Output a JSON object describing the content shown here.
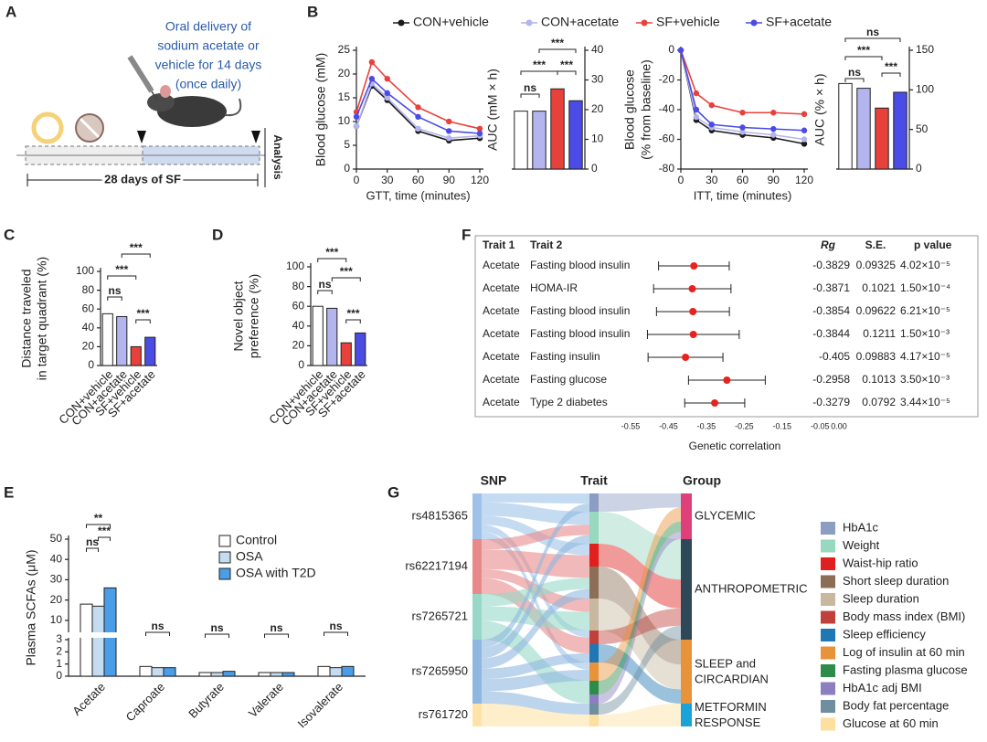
{
  "panel_labels": [
    "A",
    "B",
    "C",
    "D",
    "E",
    "F",
    "G"
  ],
  "panel_a": {
    "delivery_lines": [
      "Oral delivery of",
      "sodium acetate or",
      "vehicle for 14 days",
      "(once daily)"
    ],
    "timeline": "28 days of SF",
    "endpoint": "Analysis"
  },
  "chart_data": [
    {
      "type": "line",
      "ylabel": [
        "Blood glucose (mM)"
      ],
      "xlabel": "GTT, time (minutes)",
      "x": [
        0,
        15,
        30,
        60,
        90,
        120
      ],
      "xlim": [
        0,
        120
      ],
      "xticks": [
        0,
        30,
        60,
        90,
        120
      ],
      "ylim": [
        0,
        25
      ],
      "yticks": [
        0,
        5,
        10,
        15,
        20,
        25
      ],
      "series": [
        {
          "name": "CON+vehicle",
          "color": "#1a1a1a",
          "values": [
            9,
            17.5,
            14.5,
            8,
            6,
            6.5
          ]
        },
        {
          "name": "CON+acetate",
          "color": "#b4b4ee",
          "values": [
            9,
            18,
            15,
            8.5,
            6.5,
            7
          ]
        },
        {
          "name": "SF+vehicle",
          "color": "#e8413c",
          "values": [
            12,
            22.5,
            19,
            13,
            10,
            8.5
          ]
        },
        {
          "name": "SF+acetate",
          "color": "#4b4be6",
          "values": [
            11,
            19,
            16,
            11,
            8,
            7.5
          ]
        }
      ]
    },
    {
      "type": "bar",
      "ylabel": [
        "AUC (mM × h)"
      ],
      "values": [
        19.5,
        19.5,
        27,
        23
      ],
      "colors": [
        "#ffffff",
        "#b4b4ee",
        "#e8413c",
        "#4b4be6"
      ],
      "ylim": [
        0,
        40
      ],
      "yticks": [
        0,
        10,
        20,
        30,
        40
      ],
      "significance": [
        "ns",
        "***",
        "***",
        "***"
      ]
    },
    {
      "type": "line",
      "ylabel": [
        "Blood glucose",
        "(% from baseline)"
      ],
      "xlabel": "ITT, time (minutes)",
      "x": [
        0,
        15,
        30,
        60,
        90,
        120
      ],
      "xlim": [
        0,
        120
      ],
      "xticks": [
        0,
        30,
        60,
        90,
        120
      ],
      "ylim": [
        -80,
        0
      ],
      "yticks": [
        -80,
        -60,
        -40,
        -20,
        0
      ],
      "series": [
        {
          "color": "#1a1a1a",
          "values": [
            0,
            -47,
            -54,
            -57,
            -59,
            -63
          ]
        },
        {
          "color": "#b4b4ee",
          "values": [
            0,
            -45,
            -52,
            -55,
            -57,
            -60
          ]
        },
        {
          "color": "#e8413c",
          "values": [
            0,
            -29,
            -37,
            -42,
            -42,
            -43
          ]
        },
        {
          "color": "#4b4be6",
          "values": [
            0,
            -40,
            -50,
            -52,
            -53,
            -54
          ]
        }
      ]
    },
    {
      "type": "bar",
      "ylabel": [
        "AUC (% × h)"
      ],
      "values": [
        108,
        102,
        77,
        97
      ],
      "colors": [
        "#ffffff",
        "#b4b4ee",
        "#e8413c",
        "#4b4be6"
      ],
      "ylim": [
        0,
        150
      ],
      "yticks": [
        0,
        50,
        100,
        150
      ],
      "significance": [
        "ns",
        "***",
        "***",
        "ns"
      ]
    },
    {
      "type": "bar",
      "ylabel": [
        "Distance traveled",
        "in target quadrant (%)"
      ],
      "categories": [
        "CON+vehicle",
        "CON+acetate",
        "SF+vehicle",
        "SF+acetate"
      ],
      "values": [
        55,
        52,
        20,
        30
      ],
      "colors": [
        "#ffffff",
        "#b4b4ee",
        "#e8413c",
        "#4b4be6"
      ],
      "ylim": [
        0,
        100
      ],
      "yticks": [
        0,
        20,
        40,
        60,
        80,
        100
      ],
      "significance": [
        "ns",
        "***",
        "***",
        "***"
      ]
    },
    {
      "type": "bar",
      "ylabel": [
        "Novel object",
        "preference (%)"
      ],
      "categories": [
        "CON+vehicle",
        "CON+acetate",
        "SF+vehicle",
        "SF+acetate"
      ],
      "values": [
        60,
        58,
        23,
        33
      ],
      "colors": [
        "#ffffff",
        "#b4b4ee",
        "#e8413c",
        "#4b4be6"
      ],
      "ylim": [
        0,
        100
      ],
      "yticks": [
        0,
        20,
        40,
        60,
        80,
        100
      ],
      "significance": [
        "***",
        "ns",
        "***",
        "***"
      ]
    },
    {
      "type": "grouped_bar",
      "ylabel": [
        "Plasma SCFAs (μM)"
      ],
      "categories": [
        "Acetate",
        "Caproate",
        "Butyrate",
        "Valerate",
        "Isovalerate"
      ],
      "series": [
        {
          "name": "Control",
          "color": "#ffffff",
          "values": [
            18,
            0.8,
            0.3,
            0.3,
            0.8
          ]
        },
        {
          "name": "OSA",
          "color": "#c5dcf0",
          "values": [
            17,
            0.7,
            0.3,
            0.3,
            0.7
          ]
        },
        {
          "name": "OSA with T2D",
          "color": "#4a9ee8",
          "values": [
            26,
            0.7,
            0.4,
            0.3,
            0.8
          ]
        }
      ],
      "ylim": [
        0,
        50
      ],
      "axis_break": [
        3,
        5
      ],
      "yticks": [
        0,
        1,
        2,
        3,
        10,
        20,
        30,
        40,
        50
      ],
      "significance": [
        "**",
        "ns",
        "***",
        "ns",
        "ns",
        "ns",
        "ns"
      ]
    },
    {
      "type": "forest",
      "columns": [
        "Trait 1",
        "Trait 2",
        "Rg",
        "S.E.",
        "p value"
      ],
      "xlabel": "Genetic correlation",
      "xlim": [
        -0.55,
        0
      ],
      "xticks": [
        -0.55,
        -0.45,
        -0.35,
        -0.25,
        -0.15,
        -0.05,
        {
          "value": 0,
          "label": "0.00"
        }
      ],
      "color": "#e8231e",
      "rows": [
        {
          "trait1": "Acetate",
          "trait2": "Fasting blood insulin",
          "rg": -0.3829,
          "se": 0.09325,
          "p": "4.02×10⁻⁵"
        },
        {
          "trait1": "Acetate",
          "trait2": "HOMA-IR",
          "rg": -0.3871,
          "se": 0.1021,
          "p": "1.50×10⁻⁴"
        },
        {
          "trait1": "Acetate",
          "trait2": "Fasting blood insulin",
          "rg": -0.3854,
          "se": 0.09622,
          "p": "6.21×10⁻⁵"
        },
        {
          "trait1": "Acetate",
          "trait2": "Fasting blood insulin",
          "rg": -0.3844,
          "se": 0.1211,
          "p": "1.50×10⁻³"
        },
        {
          "trait1": "Acetate",
          "trait2": "Fasting insulin",
          "rg": -0.405,
          "se": 0.09883,
          "p": "4.17×10⁻⁵"
        },
        {
          "trait1": "Acetate",
          "trait2": "Fasting glucose",
          "rg": -0.2958,
          "se": 0.1013,
          "p": "3.50×10⁻³"
        },
        {
          "trait1": "Acetate",
          "trait2": "Type 2 diabetes",
          "rg": -0.3279,
          "se": 0.0792,
          "p": "3.44×10⁻⁵"
        }
      ]
    }
  ],
  "panel_g": {
    "headers": [
      "SNP",
      "Trait",
      "Group"
    ],
    "snps": [
      {
        "name": "rs4815365",
        "color": "#9fc3e8"
      },
      {
        "name": "rs62217194",
        "color": "#e88a8a"
      },
      {
        "name": "rs7265721",
        "color": "#98d8c8"
      },
      {
        "name": "rs7265950",
        "color": "#8fb7e0"
      },
      {
        "name": "rs761720",
        "color": "#fde3a7"
      }
    ],
    "groups": [
      {
        "lines": [
          "GLYCEMIC"
        ],
        "color": "#e0407a"
      },
      {
        "lines": [
          "ANTHROPOMETRIC"
        ],
        "color": "#2f4858"
      },
      {
        "lines": [
          "SLEEP and",
          "CIRCARDIAN"
        ],
        "color": "#e8923a"
      },
      {
        "lines": [
          "METFORMIN",
          "RESPONSE"
        ],
        "color": "#1aa3d8"
      }
    ],
    "traits": [
      {
        "name": "HbA1c",
        "color": "#8b9dc3"
      },
      {
        "name": "Weight",
        "color": "#98d8c0"
      },
      {
        "name": "Waist-hip ratio",
        "color": "#e01f1f"
      },
      {
        "name": "Short sleep duration",
        "color": "#8b6e55"
      },
      {
        "name": "Sleep duration",
        "color": "#c8b8a0"
      },
      {
        "name": "Body mass index (BMI)",
        "color": "#c0403a"
      },
      {
        "name": "Sleep efficiency",
        "color": "#1f77b4"
      },
      {
        "name": "Log of insulin at 60 min",
        "color": "#e8923a"
      },
      {
        "name": "Fasting plasma glucose",
        "color": "#2e8b4a"
      },
      {
        "name": "HbA1c adj BMI",
        "color": "#8c7fc0"
      },
      {
        "name": "Body fat percentage",
        "color": "#6f8fa0"
      },
      {
        "name": "Glucose at 60 min",
        "color": "#fde0a0"
      }
    ]
  }
}
